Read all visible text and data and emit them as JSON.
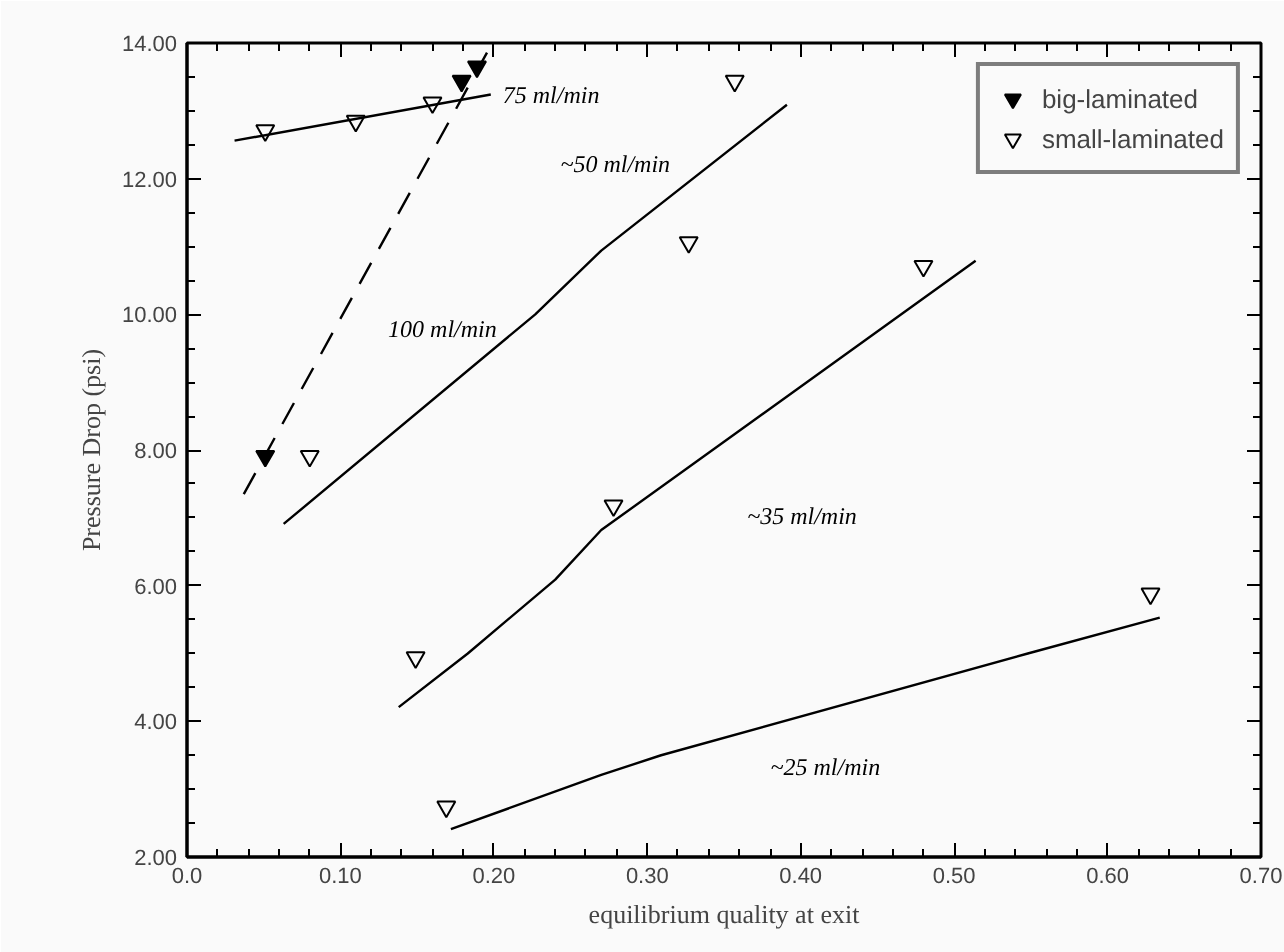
{
  "chart_data": {
    "type": "scatter",
    "xlabel": "equilibrium quality at exit",
    "ylabel": "Pressure Drop (psi)",
    "xlim": [
      0.0,
      0.7
    ],
    "ylim": [
      2.0,
      14.0
    ],
    "xticks": [
      {
        "value": 0.0,
        "label": "0.0"
      },
      {
        "value": 0.1,
        "label": "0.10"
      },
      {
        "value": 0.2,
        "label": "0.20"
      },
      {
        "value": 0.3,
        "label": "0.30"
      },
      {
        "value": 0.4,
        "label": "0.40"
      },
      {
        "value": 0.5,
        "label": "0.50"
      },
      {
        "value": 0.6,
        "label": "0.60"
      },
      {
        "value": 0.7,
        "label": "0.70"
      }
    ],
    "yticks": [
      {
        "value": 2,
        "label": "2.00"
      },
      {
        "value": 4,
        "label": "4.00"
      },
      {
        "value": 6,
        "label": "6.00"
      },
      {
        "value": 8,
        "label": "8.00"
      },
      {
        "value": 10,
        "label": "10.00"
      },
      {
        "value": 12,
        "label": "12.00"
      },
      {
        "value": 14,
        "label": "14.00"
      }
    ],
    "grid": false,
    "legend": "top right",
    "series": [
      {
        "name": "big-laminated",
        "color": "#000000",
        "marker": "triangle",
        "x": [
          0.051,
          0.179,
          0.189
        ],
        "values": [
          7.91,
          13.44,
          13.65
        ]
      },
      {
        "name": "small-laminated",
        "color": "#000000",
        "marker": "triangle",
        "x": [
          0.051,
          0.11,
          0.16,
          0.08,
          0.357,
          0.327,
          0.48,
          0.278,
          0.149,
          0.169,
          0.628
        ],
        "values": [
          12.71,
          12.85,
          13.12,
          7.91,
          13.44,
          11.06,
          10.71,
          7.18,
          4.94,
          2.74,
          5.88
        ]
      },
      {
        "type": "line",
        "color": "#000000",
        "line_style": "solid",
        "x": [
          0.031,
          0.198
        ],
        "values": [
          12.56,
          13.24
        ]
      },
      {
        "type": "line",
        "color": "#000000",
        "line_style": "dashed",
        "x": [
          0.037,
          0.199
        ],
        "values": [
          7.35,
          14.0
        ]
      },
      {
        "type": "line",
        "color": "#000000",
        "line_style": "solid",
        "x": [
          0.063,
          0.227,
          0.27,
          0.391
        ],
        "values": [
          6.91,
          10.0,
          10.94,
          13.09
        ]
      },
      {
        "type": "line",
        "color": "#000000",
        "line_style": "solid",
        "x": [
          0.138,
          0.183,
          0.24,
          0.27,
          0.514
        ],
        "values": [
          4.21,
          5.0,
          6.09,
          6.82,
          10.79
        ]
      },
      {
        "type": "line",
        "color": "#000000",
        "line_style": "solid",
        "x": [
          0.172,
          0.27,
          0.309,
          0.548,
          0.634
        ],
        "values": [
          2.41,
          3.21,
          3.5,
          5.0,
          5.53
        ]
      }
    ],
    "annotations": [
      "75 ml/min",
      "100 ml/min",
      "~50 ml/min",
      "~35 ml/min",
      "~25 ml/min"
    ]
  }
}
